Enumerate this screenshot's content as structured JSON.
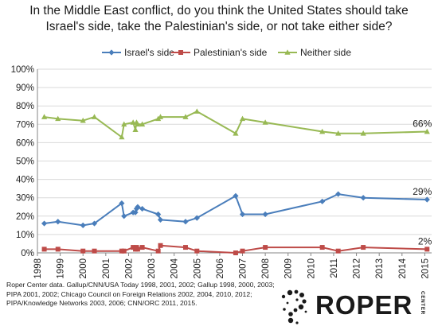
{
  "title_lines": [
    "In the Middle East conflict, do you think the United States should take",
    "Israel's side, take the Palestinian's side, or not take either side?"
  ],
  "source_lines": [
    "Roper Center data. Gallup/CNN/USA Today 1998, 2001, 2002; Gallup 1998, 2000, 2003;",
    "PIPA 2001, 2002; Chicago Council on Foreign Relations 2002, 2004, 2010, 2012;",
    "PIPA/Knowledge Networks 2003, 2006; CNN/ORC 2011, 2015."
  ],
  "logo": {
    "word": "ROPER",
    "sub": "CENTER"
  },
  "colors": {
    "israel": "#4a7ebb",
    "palestinian": "#be4b48",
    "neither": "#98b954",
    "grid": "#d9d9d9",
    "axis": "#868686"
  },
  "chart_data": {
    "type": "line",
    "title": "In the Middle East conflict, do you think the United States should take Israel's side, take the Palestinian's side, or not take either side?",
    "xlim": [
      1998,
      2015.3
    ],
    "ylim": [
      0,
      100
    ],
    "x_ticks": [
      1998,
      1999,
      2000,
      2001,
      2002,
      2003,
      2004,
      2005,
      2006,
      2007,
      2008,
      2009,
      2010,
      2011,
      2012,
      2013,
      2014,
      2015
    ],
    "y_ticks": [
      0,
      10,
      20,
      30,
      40,
      50,
      60,
      70,
      80,
      90,
      100
    ],
    "y_tick_format": "percent",
    "grid": true,
    "legend_position": "top",
    "series": [
      {
        "name": "Israel's side",
        "color": "#4a7ebb",
        "marker": "diamond",
        "end_label": "29%",
        "points": [
          [
            1998.3,
            16
          ],
          [
            1998.9,
            17
          ],
          [
            2000.0,
            15
          ],
          [
            2000.5,
            16
          ],
          [
            2001.7,
            27
          ],
          [
            2001.8,
            20
          ],
          [
            2002.2,
            22
          ],
          [
            2002.3,
            22
          ],
          [
            2002.35,
            24
          ],
          [
            2002.4,
            25
          ],
          [
            2002.6,
            24
          ],
          [
            2003.3,
            21
          ],
          [
            2003.4,
            18
          ],
          [
            2004.5,
            17
          ],
          [
            2005.0,
            19
          ],
          [
            2006.7,
            31
          ],
          [
            2007.0,
            21
          ],
          [
            2008.0,
            21
          ],
          [
            2010.5,
            28
          ],
          [
            2011.2,
            32
          ],
          [
            2012.3,
            30
          ],
          [
            2015.1,
            29
          ]
        ]
      },
      {
        "name": "Palestinian's side",
        "color": "#be4b48",
        "marker": "square",
        "end_label": "2%",
        "points": [
          [
            1998.3,
            2
          ],
          [
            1998.9,
            2
          ],
          [
            2000.0,
            1
          ],
          [
            2000.5,
            1
          ],
          [
            2001.7,
            1
          ],
          [
            2001.8,
            1
          ],
          [
            2002.2,
            3
          ],
          [
            2002.3,
            2
          ],
          [
            2002.35,
            3
          ],
          [
            2002.4,
            2
          ],
          [
            2002.6,
            3
          ],
          [
            2003.3,
            1
          ],
          [
            2003.4,
            4
          ],
          [
            2004.5,
            3
          ],
          [
            2005.0,
            1
          ],
          [
            2006.7,
            0
          ],
          [
            2007.0,
            1
          ],
          [
            2008.0,
            3
          ],
          [
            2010.5,
            3
          ],
          [
            2011.2,
            1
          ],
          [
            2012.3,
            3
          ],
          [
            2015.1,
            2
          ]
        ]
      },
      {
        "name": "Neither side",
        "color": "#98b954",
        "marker": "triangle",
        "end_label": "66%",
        "points": [
          [
            1998.3,
            74
          ],
          [
            1998.9,
            73
          ],
          [
            2000.0,
            72
          ],
          [
            2000.5,
            74
          ],
          [
            2001.7,
            63
          ],
          [
            2001.8,
            70
          ],
          [
            2002.2,
            71
          ],
          [
            2002.3,
            67
          ],
          [
            2002.35,
            71
          ],
          [
            2002.4,
            70
          ],
          [
            2002.6,
            70
          ],
          [
            2003.3,
            73
          ],
          [
            2003.4,
            74
          ],
          [
            2004.5,
            74
          ],
          [
            2005.0,
            77
          ],
          [
            2006.7,
            65
          ],
          [
            2007.0,
            73
          ],
          [
            2008.0,
            71
          ],
          [
            2010.5,
            66
          ],
          [
            2011.2,
            65
          ],
          [
            2012.3,
            65
          ],
          [
            2015.1,
            66
          ]
        ]
      }
    ]
  }
}
